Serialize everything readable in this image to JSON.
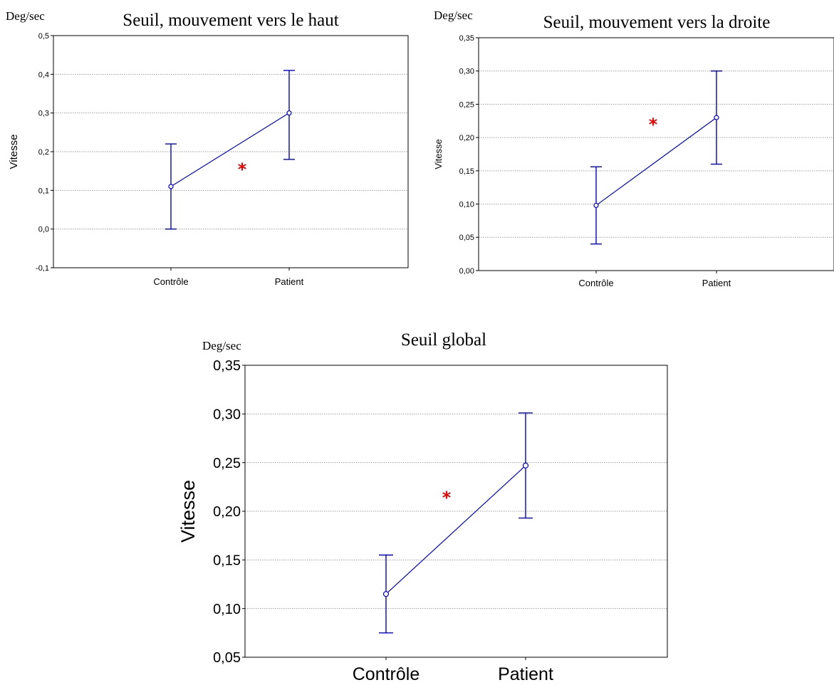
{
  "chart_data": [
    {
      "type": "line",
      "title": "Seuil, mouvement vers le haut",
      "unit": "Deg/sec",
      "ylabel": "Vitesse",
      "categories": [
        "Contrôle",
        "Patient"
      ],
      "ylim": [
        -0.1,
        0.5
      ],
      "yticks": [
        "-0,1",
        "0,0",
        "0,1",
        "0,2",
        "0,3",
        "0,4",
        "0,5"
      ],
      "ytick_values": [
        -0.1,
        0.0,
        0.1,
        0.2,
        0.3,
        0.4,
        0.5
      ],
      "series": [
        {
          "means": [
            0.11,
            0.3
          ],
          "lower": [
            0.0,
            0.18
          ],
          "upper": [
            0.22,
            0.41
          ]
        }
      ],
      "annotation": "*",
      "annotation_color": "#ee0000",
      "series_color": "#0000dd"
    },
    {
      "type": "line",
      "title": "Seuil, mouvement vers la droite",
      "unit": "Deg/sec",
      "ylabel": "Vitesse",
      "categories": [
        "Contrôle",
        "Patient"
      ],
      "ylim": [
        0.0,
        0.35
      ],
      "yticks": [
        "0,00",
        "0,05",
        "0,10",
        "0,15",
        "0,20",
        "0,25",
        "0,30",
        "0,35"
      ],
      "ytick_values": [
        0.0,
        0.05,
        0.1,
        0.15,
        0.2,
        0.25,
        0.3,
        0.35
      ],
      "series": [
        {
          "means": [
            0.098,
            0.23
          ],
          "lower": [
            0.04,
            0.16
          ],
          "upper": [
            0.156,
            0.3
          ]
        }
      ],
      "annotation": "*",
      "annotation_color": "#ee0000",
      "series_color": "#0000dd"
    },
    {
      "type": "line",
      "title": "Seuil global",
      "unit": "Deg/sec",
      "ylabel": "Vitesse",
      "categories": [
        "Contrôle",
        "Patient"
      ],
      "ylim": [
        0.05,
        0.35
      ],
      "yticks": [
        "0,05",
        "0,10",
        "0,15",
        "0,20",
        "0,25",
        "0,30",
        "0,35"
      ],
      "ytick_values": [
        0.05,
        0.1,
        0.15,
        0.2,
        0.25,
        0.3,
        0.35
      ],
      "series": [
        {
          "means": [
            0.115,
            0.247
          ],
          "lower": [
            0.075,
            0.193
          ],
          "upper": [
            0.155,
            0.301
          ]
        }
      ],
      "annotation": "*",
      "annotation_color": "#ee0000",
      "series_color": "#0000dd"
    }
  ]
}
